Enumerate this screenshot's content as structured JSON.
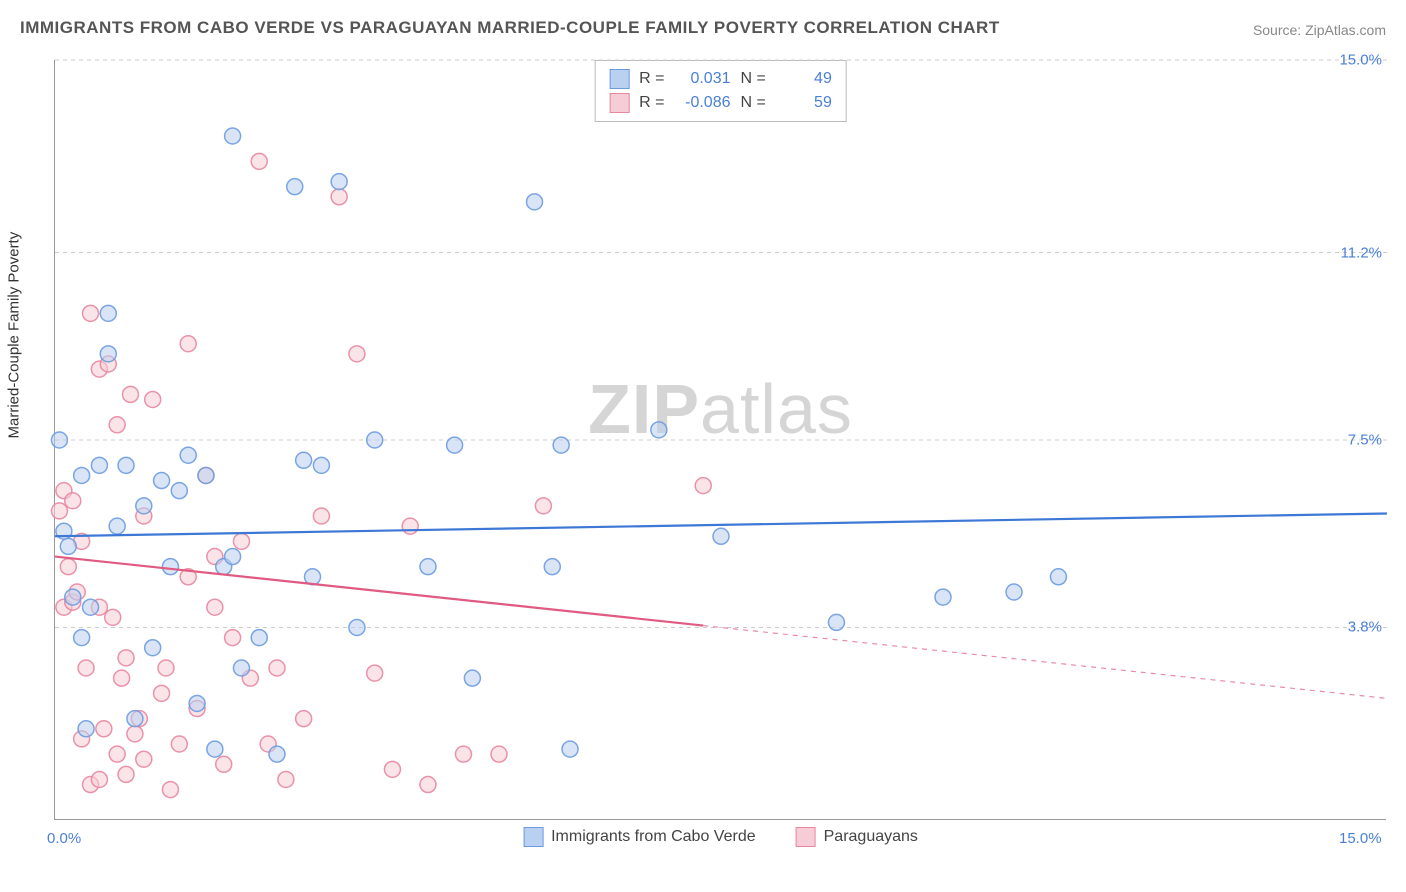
{
  "title": "IMMIGRANTS FROM CABO VERDE VS PARAGUAYAN MARRIED-COUPLE FAMILY POVERTY CORRELATION CHART",
  "source": "Source: ZipAtlas.com",
  "watermark_bold": "ZIP",
  "watermark_rest": "atlas",
  "y_axis_title": "Married-Couple Family Poverty",
  "chart": {
    "type": "scatter",
    "xlim": [
      0,
      15
    ],
    "ylim": [
      0,
      15
    ],
    "x_ticks": [
      {
        "v": 0,
        "label": "0.0%"
      },
      {
        "v": 15,
        "label": "15.0%"
      }
    ],
    "y_ticks": [
      {
        "v": 3.8,
        "label": "3.8%"
      },
      {
        "v": 7.5,
        "label": "7.5%"
      },
      {
        "v": 11.2,
        "label": "11.2%"
      },
      {
        "v": 15.0,
        "label": "15.0%"
      }
    ],
    "grid_color": "#cccccc",
    "background_color": "#ffffff",
    "marker_radius": 8,
    "marker_opacity": 0.55,
    "marker_stroke_width": 1.5,
    "series": [
      {
        "name": "Immigrants from Cabo Verde",
        "color_fill": "#b9d0f0",
        "color_stroke": "#6d9be0",
        "R": "0.031",
        "N": "49",
        "regression": {
          "x1": 0,
          "y1": 5.6,
          "x2": 15,
          "y2": 6.05,
          "solid_to": 15,
          "color": "#3d78d6",
          "width": 2.2
        },
        "points": [
          [
            0.05,
            7.5
          ],
          [
            0.1,
            5.7
          ],
          [
            0.15,
            5.4
          ],
          [
            0.3,
            6.8
          ],
          [
            0.3,
            3.6
          ],
          [
            0.35,
            1.8
          ],
          [
            0.5,
            7.0
          ],
          [
            0.6,
            9.2
          ],
          [
            0.6,
            10.0
          ],
          [
            0.7,
            5.8
          ],
          [
            0.8,
            7.0
          ],
          [
            0.9,
            2.0
          ],
          [
            1.0,
            6.2
          ],
          [
            1.1,
            3.4
          ],
          [
            1.2,
            6.7
          ],
          [
            1.3,
            5.0
          ],
          [
            1.4,
            6.5
          ],
          [
            1.6,
            2.3
          ],
          [
            1.7,
            6.8
          ],
          [
            1.9,
            5.0
          ],
          [
            2.0,
            13.5
          ],
          [
            2.0,
            5.2
          ],
          [
            2.1,
            3.0
          ],
          [
            2.3,
            3.6
          ],
          [
            2.5,
            1.3
          ],
          [
            2.7,
            12.5
          ],
          [
            2.8,
            7.1
          ],
          [
            2.9,
            4.8
          ],
          [
            3.0,
            7.0
          ],
          [
            3.2,
            12.6
          ],
          [
            3.4,
            3.8
          ],
          [
            3.6,
            7.5
          ],
          [
            4.2,
            5.0
          ],
          [
            4.5,
            7.4
          ],
          [
            4.7,
            2.8
          ],
          [
            5.4,
            12.2
          ],
          [
            5.6,
            5.0
          ],
          [
            5.7,
            7.4
          ],
          [
            5.8,
            1.4
          ],
          [
            6.8,
            7.7
          ],
          [
            7.5,
            5.6
          ],
          [
            8.8,
            3.9
          ],
          [
            10.0,
            4.4
          ],
          [
            10.8,
            4.5
          ],
          [
            11.3,
            4.8
          ],
          [
            0.2,
            4.4
          ],
          [
            0.4,
            4.2
          ],
          [
            1.5,
            7.2
          ],
          [
            1.8,
            1.4
          ]
        ]
      },
      {
        "name": "Paraguayans",
        "color_fill": "#f6cdd6",
        "color_stroke": "#e887a0",
        "R": "-0.086",
        "N": "59",
        "regression": {
          "x1": 0,
          "y1": 5.2,
          "x2": 15,
          "y2": 2.4,
          "solid_to": 7.3,
          "color": "#e05a82",
          "width": 2.2
        },
        "points": [
          [
            0.05,
            6.1
          ],
          [
            0.1,
            4.2
          ],
          [
            0.1,
            6.5
          ],
          [
            0.15,
            5.0
          ],
          [
            0.2,
            4.3
          ],
          [
            0.2,
            6.3
          ],
          [
            0.25,
            4.5
          ],
          [
            0.3,
            5.5
          ],
          [
            0.3,
            1.6
          ],
          [
            0.35,
            3.0
          ],
          [
            0.4,
            10.0
          ],
          [
            0.4,
            0.7
          ],
          [
            0.5,
            0.8
          ],
          [
            0.5,
            4.2
          ],
          [
            0.5,
            8.9
          ],
          [
            0.55,
            1.8
          ],
          [
            0.6,
            9.0
          ],
          [
            0.65,
            4.0
          ],
          [
            0.7,
            1.3
          ],
          [
            0.7,
            7.8
          ],
          [
            0.75,
            2.8
          ],
          [
            0.8,
            0.9
          ],
          [
            0.8,
            3.2
          ],
          [
            0.85,
            8.4
          ],
          [
            0.9,
            1.7
          ],
          [
            0.95,
            2.0
          ],
          [
            1.0,
            1.2
          ],
          [
            1.0,
            6.0
          ],
          [
            1.1,
            8.3
          ],
          [
            1.2,
            2.5
          ],
          [
            1.25,
            3.0
          ],
          [
            1.3,
            0.6
          ],
          [
            1.4,
            1.5
          ],
          [
            1.5,
            9.4
          ],
          [
            1.5,
            4.8
          ],
          [
            1.6,
            2.2
          ],
          [
            1.7,
            6.8
          ],
          [
            1.8,
            5.2
          ],
          [
            1.8,
            4.2
          ],
          [
            1.9,
            1.1
          ],
          [
            2.0,
            3.6
          ],
          [
            2.1,
            5.5
          ],
          [
            2.2,
            2.8
          ],
          [
            2.3,
            13.0
          ],
          [
            2.4,
            1.5
          ],
          [
            2.5,
            3.0
          ],
          [
            2.6,
            0.8
          ],
          [
            2.8,
            2.0
          ],
          [
            3.0,
            6.0
          ],
          [
            3.2,
            12.3
          ],
          [
            3.4,
            9.2
          ],
          [
            3.6,
            2.9
          ],
          [
            3.8,
            1.0
          ],
          [
            4.0,
            5.8
          ],
          [
            4.2,
            0.7
          ],
          [
            4.6,
            1.3
          ],
          [
            5.0,
            1.3
          ],
          [
            5.5,
            6.2
          ],
          [
            7.3,
            6.6
          ]
        ]
      }
    ],
    "legend": [
      {
        "label": "Immigrants from Cabo Verde",
        "fill": "#b9d0f0",
        "stroke": "#6d9be0"
      },
      {
        "label": "Paraguayans",
        "fill": "#f6cdd6",
        "stroke": "#e887a0"
      }
    ]
  }
}
